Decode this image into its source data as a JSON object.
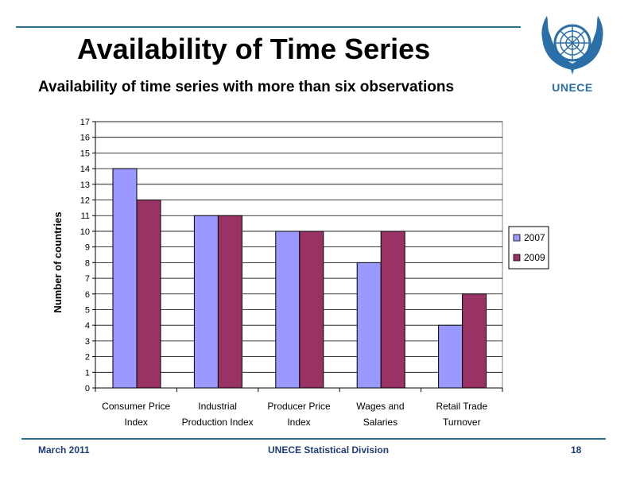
{
  "slide": {
    "title": "Availability of Time Series",
    "subtitle": "Availability of time series with more than six observations"
  },
  "logo": {
    "name": "un-emblem-icon",
    "text": "UNECE",
    "color": "#2a6fa8"
  },
  "footer": {
    "left": "March 2011",
    "center": "UNECE Statistical Division",
    "right": "18"
  },
  "colors": {
    "series_2007": "#9999ff",
    "series_2009": "#993366",
    "rule": "#2f6f8f",
    "footer_text": "#1e3c78"
  },
  "chart_data": {
    "type": "bar",
    "title": "",
    "xlabel": "",
    "ylabel": "Number of countries",
    "ylim": [
      0,
      17
    ],
    "yticks": [
      0,
      1,
      2,
      3,
      4,
      5,
      6,
      7,
      8,
      9,
      10,
      11,
      12,
      13,
      14,
      15,
      16,
      17
    ],
    "grid": true,
    "legend_position": "right",
    "categories": [
      [
        "Consumer Price",
        "Index"
      ],
      [
        "Industrial",
        "Production Index"
      ],
      [
        "Producer Price",
        "Index"
      ],
      [
        "Wages and",
        "Salaries"
      ],
      [
        "Retail Trade",
        "Turnover"
      ]
    ],
    "series": [
      {
        "name": "2007",
        "color": "#9999ff",
        "values": [
          14,
          11,
          10,
          8,
          4
        ]
      },
      {
        "name": "2009",
        "color": "#993366",
        "values": [
          12,
          11,
          10,
          10,
          6
        ]
      }
    ]
  }
}
